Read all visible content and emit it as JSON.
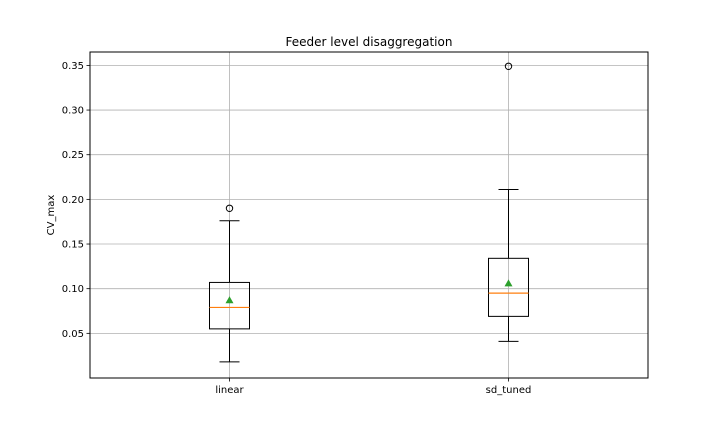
{
  "chart_data": {
    "type": "box",
    "title": "Feeder level disaggregation",
    "xlabel": "",
    "ylabel": "CV_max",
    "categories": [
      "linear",
      "sd_tuned"
    ],
    "ylim": [
      0.0,
      0.365
    ],
    "yticks": [
      0.05,
      0.1,
      0.15,
      0.2,
      0.25,
      0.3,
      0.35
    ],
    "ytick_labels": [
      "0.05",
      "0.10",
      "0.15",
      "0.20",
      "0.25",
      "0.30",
      "0.35"
    ],
    "grid": true,
    "boxes": [
      {
        "category": "linear",
        "whisker_low": 0.018,
        "q1": 0.055,
        "median": 0.079,
        "q3": 0.107,
        "whisker_high": 0.176,
        "mean": 0.087,
        "outliers": [
          0.19
        ]
      },
      {
        "category": "sd_tuned",
        "whisker_low": 0.041,
        "q1": 0.069,
        "median": 0.095,
        "q3": 0.134,
        "whisker_high": 0.211,
        "mean": 0.106,
        "outliers": [
          0.349
        ]
      }
    ],
    "colors": {
      "box": "#000000",
      "median": "#ff7f0e",
      "mean": "#2ca02c",
      "grid": "#b0b0b0"
    }
  }
}
